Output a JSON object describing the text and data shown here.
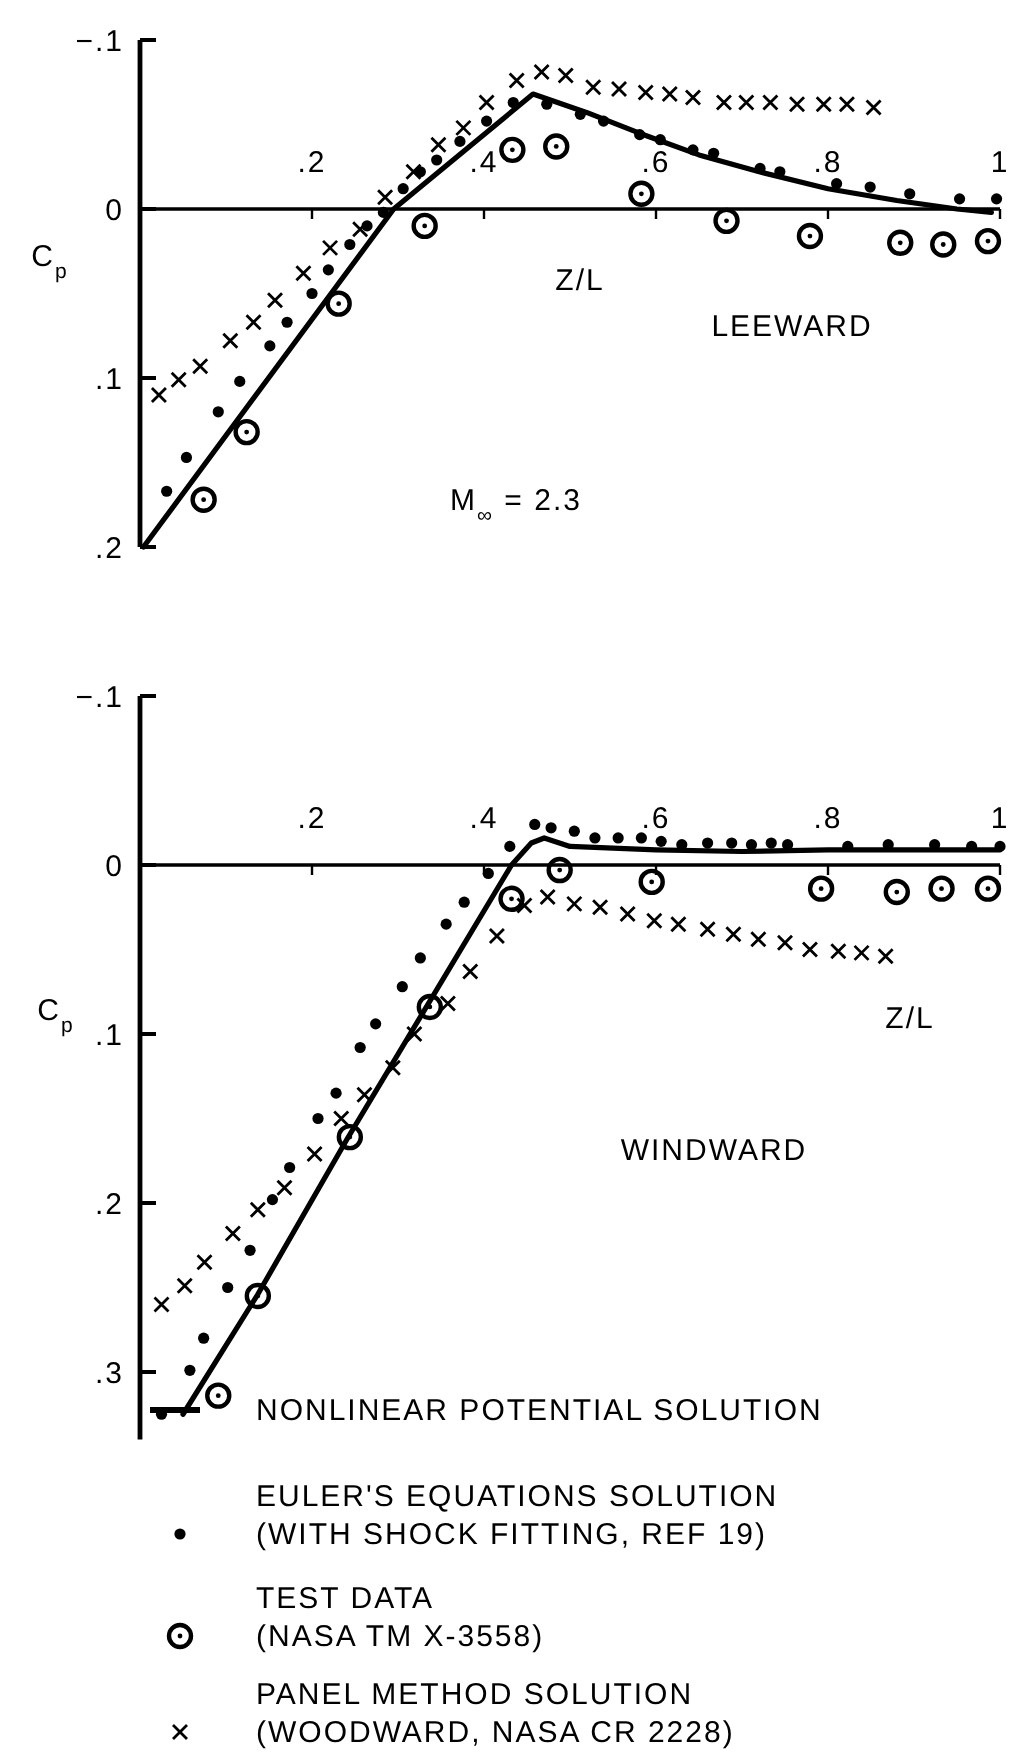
{
  "chart_data": [
    {
      "type": "scatter",
      "xlabel": "Z/L",
      "ylabel": "C$_{p}$",
      "xlim": [
        0,
        1
      ],
      "ylim": [
        0.2,
        -0.1
      ],
      "xticks": [
        {
          "value": 0.2,
          "label": ".2"
        },
        {
          "value": 0.4,
          "label": ".4"
        },
        {
          "value": 0.6,
          "label": ".6"
        },
        {
          "value": 0.8,
          "label": ".8"
        },
        1
      ],
      "yticks": [
        {
          "value": -0.1,
          "label": "−.1"
        },
        0,
        {
          "value": 0.1,
          "label": ".1"
        },
        {
          "value": 0.2,
          "label": ".2"
        }
      ],
      "annotations": [
        "LEEWARD",
        "M$_{∞}$ = 2.3"
      ],
      "series": [
        {
          "type": "line",
          "color": "#000000",
          "line_style": "solid",
          "marker": "none",
          "x": [
            0.004,
            0.295,
            0.457,
            0.52,
            0.58,
            0.65,
            0.72,
            0.8,
            0.88,
            0.95,
            0.99
          ],
          "values": [
            0.2,
            0,
            -0.068,
            -0.057,
            -0.045,
            -0.032,
            -0.022,
            -0.012,
            -0.005,
            0,
            0.002
          ]
        },
        {
          "type": "scatter",
          "color": "#000000",
          "marker": "circle",
          "x": [
            0.031,
            0.054,
            0.091,
            0.116,
            0.151,
            0.171,
            0.2,
            0.219,
            0.244,
            0.264,
            0.283,
            0.306,
            0.326,
            0.345,
            0.372,
            0.403,
            0.434,
            0.473,
            0.512,
            0.539,
            0.581,
            0.605,
            0.643,
            0.667,
            0.721,
            0.744,
            0.81,
            0.849,
            0.895,
            0.953,
            0.996
          ],
          "values": [
            0.167,
            0.147,
            0.12,
            0.102,
            0.081,
            0.067,
            0.05,
            0.036,
            0.021,
            0.01,
            0.002,
            -0.012,
            -0.022,
            -0.029,
            -0.04,
            -0.052,
            -0.063,
            -0.062,
            -0.056,
            -0.052,
            -0.044,
            -0.041,
            -0.035,
            -0.033,
            -0.024,
            -0.022,
            -0.015,
            -0.013,
            -0.009,
            -0.006,
            -0.006
          ]
        },
        {
          "type": "scatter",
          "color": "#000000",
          "marker": "circle-dot",
          "x": [
            0.074,
            0.124,
            0.231,
            0.331,
            0.433,
            0.484,
            0.583,
            0.682,
            0.779,
            0.884,
            0.934,
            0.986
          ],
          "values": [
            0.172,
            0.132,
            0.056,
            0.01,
            -0.035,
            -0.037,
            -0.009,
            0.007,
            0.016,
            0.02,
            0.021,
            0.019
          ]
        },
        {
          "type": "scatter",
          "color": "#000000",
          "marker": "cross",
          "x": [
            0.022,
            0.045,
            0.07,
            0.105,
            0.132,
            0.157,
            0.19,
            0.221,
            0.256,
            0.285,
            0.318,
            0.347,
            0.376,
            0.403,
            0.438,
            0.467,
            0.495,
            0.527,
            0.557,
            0.588,
            0.616,
            0.643,
            0.679,
            0.705,
            0.733,
            0.764,
            0.795,
            0.822,
            0.853
          ],
          "values": [
            0.11,
            0.101,
            0.093,
            0.078,
            0.067,
            0.054,
            0.038,
            0.023,
            0.012,
            -0.007,
            -0.022,
            -0.038,
            -0.048,
            -0.063,
            -0.076,
            -0.081,
            -0.079,
            -0.072,
            -0.071,
            -0.069,
            -0.068,
            -0.066,
            -0.063,
            -0.063,
            -0.063,
            -0.062,
            -0.062,
            -0.062,
            -0.06
          ]
        }
      ]
    },
    {
      "type": "scatter",
      "xlabel": "Z/L",
      "ylabel": "C$_{p}$",
      "xlim": [
        0,
        1
      ],
      "ylim": [
        0.34,
        -0.1
      ],
      "legend": "bottom",
      "xticks": [
        {
          "value": 0.2,
          "label": ".2"
        },
        {
          "value": 0.4,
          "label": ".4"
        },
        {
          "value": 0.6,
          "label": ".6"
        },
        {
          "value": 0.8,
          "label": ".8"
        },
        1
      ],
      "yticks": [
        {
          "value": -0.1,
          "label": "−.1"
        },
        0,
        {
          "value": 0.1,
          "label": ".1"
        },
        {
          "value": 0.2,
          "label": ".2"
        },
        {
          "value": 0.3,
          "label": ".3"
        }
      ],
      "annotations": [
        "WINDWARD"
      ],
      "series": [
        {
          "type": "line",
          "name": "NONLINEAR POTENTIAL SOLUTION",
          "color": "#000000",
          "line_style": "solid",
          "marker": "none",
          "x": [
            0.05,
            0.137,
            0.241,
            0.432,
            0.455,
            0.47,
            0.5,
            0.6,
            0.7,
            0.8,
            1
          ],
          "values": [
            0.325,
            0.254,
            0.162,
            0,
            -0.013,
            -0.016,
            -0.011,
            -0.009,
            -0.008,
            -0.009,
            -0.009
          ]
        },
        {
          "type": "scatter",
          "name": "EULER'S EQUATIONS SOLUTION\n(WITH SHOCK FITTING, REF 19)",
          "color": "#000000",
          "marker": "circle",
          "x": [
            0.025,
            0.058,
            0.074,
            0.102,
            0.128,
            0.154,
            0.174,
            0.207,
            0.228,
            0.256,
            0.274,
            0.305,
            0.326,
            0.356,
            0.377,
            0.405,
            0.43,
            0.459,
            0.478,
            0.505,
            0.529,
            0.556,
            0.583,
            0.606,
            0.63,
            0.66,
            0.688,
            0.711,
            0.734,
            0.753,
            0.823,
            0.87,
            0.924,
            0.967,
            1
          ],
          "values": [
            0.325,
            0.299,
            0.28,
            0.25,
            0.228,
            0.198,
            0.179,
            0.15,
            0.135,
            0.108,
            0.094,
            0.072,
            0.055,
            0.035,
            0.022,
            0.005,
            -0.011,
            -0.024,
            -0.022,
            -0.02,
            -0.016,
            -0.016,
            -0.016,
            -0.014,
            -0.012,
            -0.013,
            -0.013,
            -0.012,
            -0.013,
            -0.012,
            -0.011,
            -0.012,
            -0.012,
            -0.011,
            -0.011
          ]
        },
        {
          "type": "scatter",
          "name": "TEST DATA\n(NASA TM X-3558)",
          "color": "#000000",
          "marker": "circle-dot",
          "x": [
            0.091,
            0.137,
            0.244,
            0.337,
            0.432,
            0.488,
            0.595,
            0.792,
            0.88,
            0.932,
            0.986
          ],
          "values": [
            0.314,
            0.255,
            0.161,
            0.084,
            0.02,
            0.003,
            0.01,
            0.014,
            0.016,
            0.014,
            0.014
          ]
        },
        {
          "type": "scatter",
          "name": "PANEL METHOD SOLUTION\n(WOODWARD, NASA CR 2228)",
          "color": "#000000",
          "marker": "cross",
          "x": [
            0.025,
            0.052,
            0.075,
            0.108,
            0.137,
            0.168,
            0.203,
            0.234,
            0.261,
            0.294,
            0.319,
            0.358,
            0.384,
            0.415,
            0.447,
            0.474,
            0.505,
            0.535,
            0.567,
            0.598,
            0.626,
            0.66,
            0.69,
            0.719,
            0.75,
            0.779,
            0.812,
            0.839,
            0.867
          ],
          "values": [
            0.26,
            0.249,
            0.235,
            0.218,
            0.204,
            0.191,
            0.171,
            0.15,
            0.136,
            0.12,
            0.1,
            0.082,
            0.063,
            0.042,
            0.024,
            0.019,
            0.023,
            0.025,
            0.029,
            0.033,
            0.035,
            0.038,
            0.041,
            0.044,
            0.046,
            0.05,
            0.051,
            0.052,
            0.054
          ]
        }
      ]
    }
  ]
}
